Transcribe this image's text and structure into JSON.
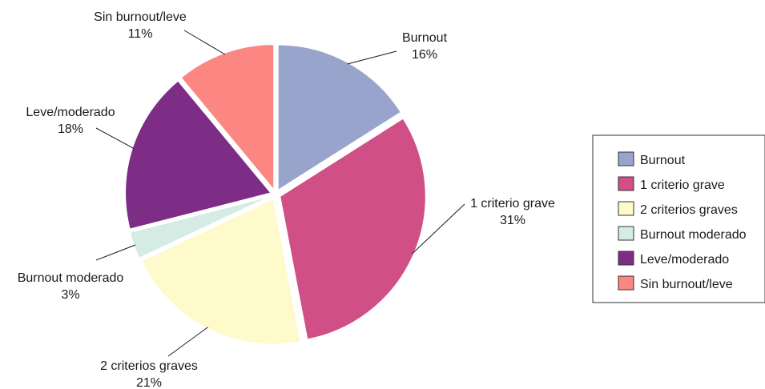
{
  "chart_data": {
    "type": "pie",
    "slices": [
      {
        "label": "Burnout",
        "value": 16,
        "value_label": "16%",
        "legend": "Burnout",
        "color": "#99a4cc"
      },
      {
        "label": "1 criterio grave",
        "value": 31,
        "value_label": "31%",
        "legend": "1 criterio grave",
        "color": "#cf4f86"
      },
      {
        "label": "2 criterios graves",
        "value": 21,
        "value_label": "21%",
        "legend": "2 criterios graves",
        "color": "#fffacc"
      },
      {
        "label": "Burnout moderado",
        "value": 3,
        "value_label": "3%",
        "legend": "Burnout moderado",
        "color": "#d4ece4"
      },
      {
        "label": "Leve/moderado",
        "value": 18,
        "value_label": "18%",
        "legend": "Leve/moderado",
        "color": "#7d2d86"
      },
      {
        "label": "Sin burnout/leve",
        "value": 11,
        "value_label": "11%",
        "legend": "Sin burnout/leve",
        "color": "#fc8682"
      }
    ],
    "legend_position": "right",
    "exploded": true
  }
}
